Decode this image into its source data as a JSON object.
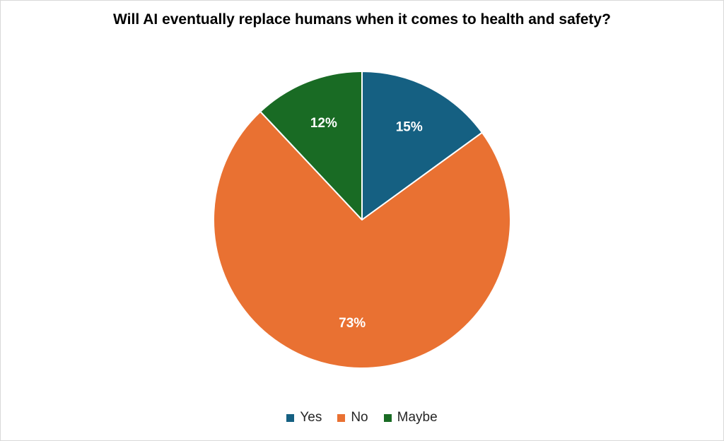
{
  "chart_data": {
    "type": "pie",
    "title": "Will AI eventually replace humans when it comes to health and safety?",
    "categories": [
      "Yes",
      "No",
      "Maybe"
    ],
    "values": [
      15,
      73,
      12
    ],
    "data_labels": [
      "15%",
      "73%",
      "12%"
    ],
    "colors": [
      "#156082",
      "#E97132",
      "#196B24"
    ],
    "slice_border_color": "#ffffff",
    "start_angle_deg": 0,
    "direction": "clockwise",
    "legend_position": "bottom"
  }
}
